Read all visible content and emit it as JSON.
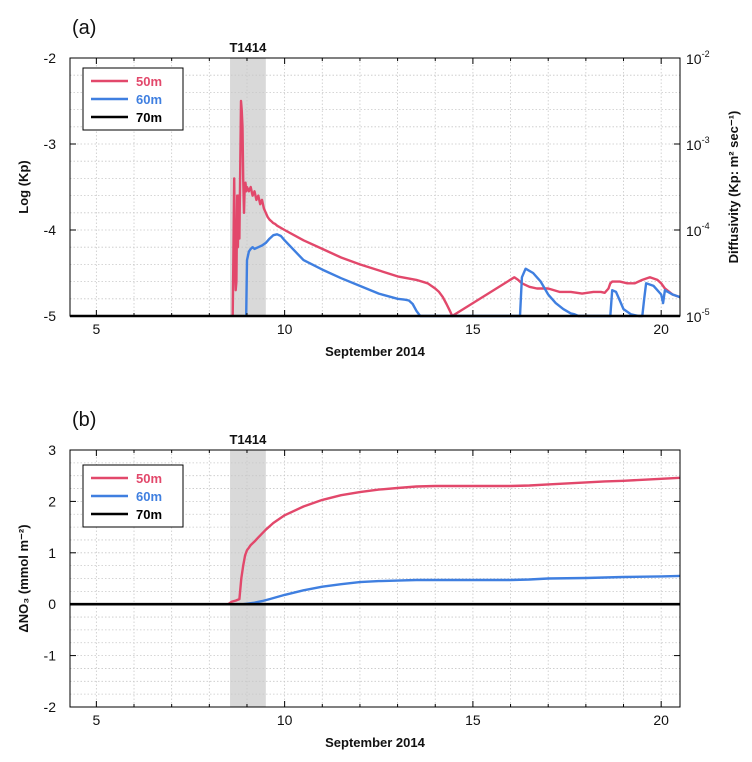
{
  "chart_data": [
    {
      "panel": "a",
      "panel_label": "(a)",
      "type": "line",
      "event_label": "T1414",
      "event_span": [
        8.55,
        9.5
      ],
      "xlabel": "September 2014",
      "ylabel": "Log (Kp)",
      "ylabel_right": "Diffusivity (Kp: m² sec⁻¹)",
      "xlim": [
        4.3,
        20.5
      ],
      "ylim": [
        -5,
        -2
      ],
      "x_ticks": [
        5,
        10,
        15,
        20
      ],
      "y_ticks": [
        -5,
        -4,
        -3,
        -2
      ],
      "right_ticks": [
        {
          "value": -5,
          "base": "10",
          "exp": "-5"
        },
        {
          "value": -4,
          "base": "10",
          "exp": "-4"
        },
        {
          "value": -3,
          "base": "10",
          "exp": "-3"
        },
        {
          "value": -2,
          "base": "10",
          "exp": "-2"
        }
      ],
      "grid": true,
      "legend_position": "top-left",
      "series": [
        {
          "name": "50m",
          "color": "#e2486b",
          "x": [
            8.62,
            8.64,
            8.66,
            8.68,
            8.7,
            8.72,
            8.74,
            8.76,
            8.78,
            8.8,
            8.82,
            8.84,
            8.86,
            8.88,
            8.9,
            8.92,
            8.94,
            8.96,
            8.98,
            9.0,
            9.05,
            9.1,
            9.15,
            9.2,
            9.25,
            9.3,
            9.35,
            9.4,
            9.45,
            9.5,
            9.55,
            9.6,
            9.65,
            9.7,
            9.75,
            9.8,
            10.0,
            10.5,
            11.0,
            11.5,
            12.0,
            12.5,
            13.0,
            13.5,
            13.8,
            14.0,
            14.1,
            14.2,
            14.3,
            14.4,
            14.45,
            16.1,
            16.2,
            16.3,
            16.5,
            16.7,
            17.0,
            17.3,
            17.6,
            17.9,
            18.2,
            18.4,
            18.5,
            18.6,
            18.65,
            18.7,
            18.9,
            19.1,
            19.3,
            19.5,
            19.7,
            19.9,
            20.0,
            20.1,
            20.3,
            20.5
          ],
          "y": [
            -5.0,
            -4.3,
            -3.4,
            -4.3,
            -4.7,
            -4.6,
            -3.6,
            -4.2,
            -3.6,
            -4.1,
            -3.3,
            -2.5,
            -2.6,
            -2.8,
            -3.4,
            -3.8,
            -3.5,
            -3.45,
            -3.55,
            -3.5,
            -3.55,
            -3.5,
            -3.6,
            -3.55,
            -3.65,
            -3.6,
            -3.7,
            -3.65,
            -3.75,
            -3.8,
            -3.85,
            -3.88,
            -3.9,
            -3.92,
            -3.93,
            -3.95,
            -4.0,
            -4.12,
            -4.22,
            -4.32,
            -4.4,
            -4.47,
            -4.54,
            -4.58,
            -4.62,
            -4.68,
            -4.72,
            -4.78,
            -4.86,
            -4.95,
            -5.0,
            -4.55,
            -4.58,
            -4.62,
            -4.66,
            -4.68,
            -4.68,
            -4.72,
            -4.72,
            -4.74,
            -4.72,
            -4.72,
            -4.73,
            -4.68,
            -4.62,
            -4.6,
            -4.6,
            -4.62,
            -4.62,
            -4.58,
            -4.55,
            -4.58,
            -4.62,
            -4.68,
            -4.75,
            -4.78
          ]
        },
        {
          "name": "60m",
          "color": "#3f7fe0",
          "x": [
            8.98,
            9.0,
            9.05,
            9.1,
            9.15,
            9.2,
            9.3,
            9.4,
            9.5,
            9.6,
            9.7,
            9.8,
            9.9,
            10.0,
            10.5,
            11.0,
            11.5,
            12.0,
            12.5,
            13.0,
            13.2,
            13.3,
            13.4,
            13.5,
            13.6,
            16.25,
            16.3,
            16.4,
            16.6,
            16.8,
            17.0,
            17.2,
            17.4,
            17.6,
            17.7,
            17.8,
            18.65,
            18.7,
            18.8,
            18.9,
            19.0,
            19.2,
            19.4,
            19.5,
            19.55,
            19.6,
            19.8,
            20.0,
            20.05,
            20.1,
            20.3,
            20.5
          ],
          "y": [
            -5.0,
            -4.35,
            -4.25,
            -4.22,
            -4.2,
            -4.22,
            -4.2,
            -4.18,
            -4.15,
            -4.1,
            -4.06,
            -4.05,
            -4.07,
            -4.12,
            -4.35,
            -4.46,
            -4.56,
            -4.65,
            -4.74,
            -4.8,
            -4.81,
            -4.82,
            -4.86,
            -4.94,
            -5.0,
            -5.0,
            -4.55,
            -4.45,
            -4.5,
            -4.6,
            -4.75,
            -4.85,
            -4.92,
            -4.97,
            -4.98,
            -5.0,
            -5.0,
            -4.7,
            -4.72,
            -4.82,
            -4.92,
            -4.98,
            -5.0,
            -5.0,
            -4.8,
            -4.62,
            -4.65,
            -4.75,
            -4.85,
            -4.7,
            -4.75,
            -4.78
          ]
        },
        {
          "name": "70m",
          "color": "#000000",
          "x": [
            4.3,
            20.5
          ],
          "y": [
            -5.0,
            -5.0
          ]
        }
      ]
    },
    {
      "panel": "b",
      "panel_label": "(b)",
      "type": "line",
      "event_label": "T1414",
      "event_span": [
        8.55,
        9.5
      ],
      "xlabel": "September 2014",
      "ylabel": "ΔNO₃ (mmol m⁻²)",
      "xlim": [
        4.3,
        20.5
      ],
      "ylim": [
        -2,
        3
      ],
      "x_ticks": [
        5,
        10,
        15,
        20
      ],
      "y_ticks": [
        -2,
        -1,
        0,
        1,
        2,
        3
      ],
      "grid": true,
      "legend_position": "top-left",
      "series": [
        {
          "name": "50m",
          "color": "#e2486b",
          "x": [
            4.3,
            8.5,
            8.6,
            8.7,
            8.8,
            8.85,
            8.9,
            8.95,
            9.0,
            9.05,
            9.1,
            9.2,
            9.3,
            9.5,
            9.7,
            10.0,
            10.5,
            11.0,
            11.5,
            12.0,
            12.5,
            13.0,
            13.5,
            14.0,
            14.5,
            15.0,
            15.5,
            16.0,
            16.5,
            17.0,
            17.5,
            18.0,
            18.5,
            19.0,
            19.5,
            20.0,
            20.5
          ],
          "y": [
            0,
            0,
            0.05,
            0.07,
            0.1,
            0.5,
            0.75,
            0.95,
            1.05,
            1.1,
            1.15,
            1.22,
            1.3,
            1.45,
            1.58,
            1.73,
            1.9,
            2.03,
            2.12,
            2.18,
            2.23,
            2.26,
            2.29,
            2.3,
            2.3,
            2.3,
            2.3,
            2.3,
            2.31,
            2.33,
            2.35,
            2.37,
            2.39,
            2.4,
            2.42,
            2.44,
            2.46
          ]
        },
        {
          "name": "60m",
          "color": "#3f7fe0",
          "x": [
            4.3,
            8.9,
            9.0,
            9.2,
            9.4,
            9.6,
            9.8,
            10.0,
            10.5,
            11.0,
            11.5,
            12.0,
            12.5,
            13.0,
            13.5,
            14.0,
            15.0,
            16.0,
            16.5,
            17.0,
            18.0,
            19.0,
            20.0,
            20.5
          ],
          "y": [
            0,
            0,
            0.01,
            0.03,
            0.06,
            0.1,
            0.14,
            0.18,
            0.27,
            0.34,
            0.39,
            0.43,
            0.45,
            0.46,
            0.47,
            0.47,
            0.47,
            0.47,
            0.48,
            0.5,
            0.51,
            0.53,
            0.54,
            0.55
          ]
        },
        {
          "name": "70m",
          "color": "#000000",
          "x": [
            4.3,
            20.5
          ],
          "y": [
            0,
            0
          ]
        }
      ]
    }
  ]
}
